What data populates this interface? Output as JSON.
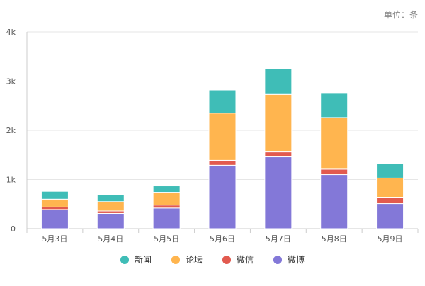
{
  "unit_label": "单位：条",
  "chart_data": {
    "type": "bar",
    "stacked": true,
    "categories": [
      "5月3日",
      "5月4日",
      "5月5日",
      "5月6日",
      "5月7日",
      "5月8日",
      "5月9日"
    ],
    "y_ticks": [
      "0",
      "1k",
      "2k",
      "3k",
      "4k"
    ],
    "ylim": [
      0,
      4000
    ],
    "grid": true,
    "legend_position": "bottom",
    "series": [
      {
        "name": "微博",
        "color": "#8378d8",
        "values": [
          390,
          310,
          420,
          1290,
          1460,
          1100,
          510
        ]
      },
      {
        "name": "微信",
        "color": "#e25a4f",
        "values": [
          50,
          50,
          60,
          100,
          100,
          110,
          130
        ]
      },
      {
        "name": "论坛",
        "color": "#ffb54f",
        "values": [
          160,
          190,
          260,
          960,
          1170,
          1050,
          390
        ]
      },
      {
        "name": "新闻",
        "color": "#3fbdb7",
        "values": [
          160,
          140,
          130,
          470,
          520,
          490,
          290
        ]
      }
    ],
    "legend_order": [
      3,
      2,
      1,
      0
    ]
  }
}
